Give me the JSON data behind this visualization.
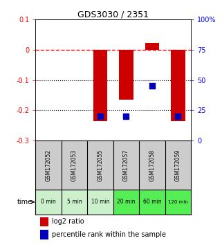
{
  "title": "GDS3030 / 2351",
  "samples": [
    "GSM172052",
    "GSM172053",
    "GSM172055",
    "GSM172057",
    "GSM172058",
    "GSM172059"
  ],
  "time_labels": [
    "0 min",
    "5 min",
    "10 min",
    "20 min",
    "60 min",
    "120 min"
  ],
  "log2_ratio": [
    0.0,
    0.0,
    -0.235,
    -0.165,
    0.022,
    -0.235
  ],
  "percentile_rank": [
    null,
    null,
    20.0,
    20.0,
    45.0,
    20.0
  ],
  "ylim_left": [
    -0.3,
    0.1
  ],
  "ylim_right": [
    0,
    100
  ],
  "yticks_left": [
    0.1,
    0.0,
    -0.1,
    -0.2,
    -0.3
  ],
  "ytick_labels_left": [
    "0.1",
    "0",
    "-0.1",
    "-0.2",
    "-0.3"
  ],
  "yticks_right": [
    100,
    75,
    50,
    25,
    0
  ],
  "ytick_labels_right": [
    "100%",
    "75",
    "50",
    "25",
    "0"
  ],
  "hline_y": 0.0,
  "dotted_lines": [
    -0.1,
    -0.2
  ],
  "bar_width": 0.55,
  "bar_color": "#cc0000",
  "dot_color": "#0000bb",
  "dot_size": 30,
  "time_colors": [
    "#ccf0cc",
    "#ccf0cc",
    "#ccf0cc",
    "#55ee55",
    "#55ee55",
    "#55ee55"
  ],
  "sample_bg_color": "#cccccc",
  "legend_bar_label": "log2 ratio",
  "legend_dot_label": "percentile rank within the sample",
  "x_positions": [
    0,
    1,
    2,
    3,
    4,
    5
  ]
}
